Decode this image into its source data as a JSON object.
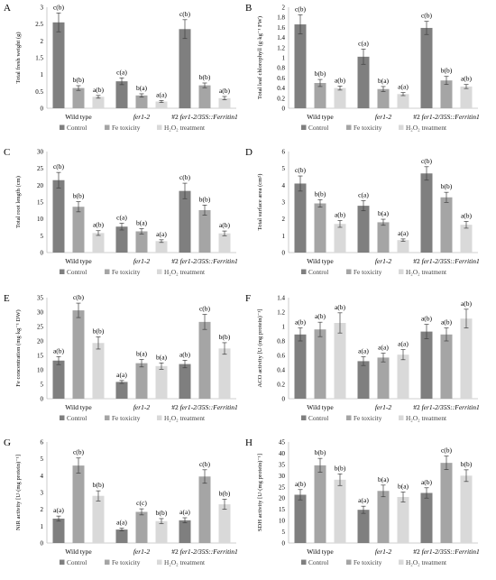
{
  "colors": {
    "control": "#7f7f7f",
    "fe": "#a5a5a5",
    "h2o2": "#d9d9d9",
    "axis": "#bfbfbf",
    "error": "#404040"
  },
  "legend_labels": [
    "Control",
    "Fe toxicity",
    "H₂O₂ treatment"
  ],
  "chart_data": [
    {
      "panel": "A",
      "type": "bar",
      "ylabel": "Total fresh weight (g)",
      "ylim": [
        0,
        3
      ],
      "yticks": [
        "0",
        "0.5",
        "1",
        "1.5",
        "2",
        "2.5",
        "3"
      ],
      "categories": [
        "Wild type",
        "fer1-2",
        "#2 fer1-2/35S::Ferritin1"
      ],
      "series": [
        {
          "name": "Control",
          "values": [
            2.55,
            0.8,
            2.35
          ],
          "errors": [
            0.28,
            0.1,
            0.28
          ],
          "labels": [
            "c(b)",
            "c(a)",
            "c(b)"
          ]
        },
        {
          "name": "Fe toxicity",
          "values": [
            0.6,
            0.38,
            0.68
          ],
          "errors": [
            0.07,
            0.05,
            0.07
          ],
          "labels": [
            "b(b)",
            "b(a)",
            "b(b)"
          ]
        },
        {
          "name": "H₂O₂ treatment",
          "values": [
            0.34,
            0.2,
            0.3
          ],
          "errors": [
            0.04,
            0.03,
            0.05
          ],
          "labels": [
            "a(b)",
            "a(a)",
            "a(b)"
          ]
        }
      ]
    },
    {
      "panel": "B",
      "type": "bar",
      "ylabel": "Total leaf chlorophyll (g·kg⁻¹ FW)",
      "ylim": [
        0,
        2
      ],
      "yticks": [
        "0",
        "0.2",
        "0.4",
        "0.6",
        "0.8",
        "1",
        "1.2",
        "1.4",
        "1.6",
        "1.8",
        "2"
      ],
      "categories": [
        "Wild type",
        "fer1-2",
        "#2 fer1-2/35S::Ferritin1"
      ],
      "series": [
        {
          "name": "Control",
          "values": [
            1.66,
            1.02,
            1.59
          ],
          "errors": [
            0.19,
            0.15,
            0.13
          ],
          "labels": [
            "c(b)",
            "c(a)",
            "c(b)"
          ]
        },
        {
          "name": "Fe toxicity",
          "values": [
            0.5,
            0.38,
            0.55
          ],
          "errors": [
            0.07,
            0.05,
            0.08
          ],
          "labels": [
            "b(b)",
            "b(a)",
            "b(b)"
          ]
        },
        {
          "name": "H₂O₂ treatment",
          "values": [
            0.4,
            0.28,
            0.43
          ],
          "errors": [
            0.04,
            0.03,
            0.04
          ],
          "labels": [
            "a(b)",
            "a(a)",
            "a(b)"
          ]
        }
      ]
    },
    {
      "panel": "C",
      "type": "bar",
      "ylabel": "Total root length (cm)",
      "ylim": [
        0,
        30
      ],
      "yticks": [
        "0",
        "5",
        "10",
        "15",
        "20",
        "25",
        "30"
      ],
      "categories": [
        "Wild type",
        "fer1-2",
        "#2 fer1-2/35S::Ferritin1"
      ],
      "series": [
        {
          "name": "Control",
          "values": [
            21.5,
            7.7,
            18.3
          ],
          "errors": [
            2.3,
            1.0,
            2.3
          ],
          "labels": [
            "c(b)",
            "c(a)",
            "c(b)"
          ]
        },
        {
          "name": "Fe toxicity",
          "values": [
            13.6,
            6.3,
            12.6
          ],
          "errors": [
            1.5,
            0.8,
            1.5
          ],
          "labels": [
            "b(b)",
            "b(a)",
            "b(b)"
          ]
        },
        {
          "name": "H₂O₂ treatment",
          "values": [
            5.8,
            3.4,
            5.7
          ],
          "errors": [
            0.7,
            0.4,
            0.7
          ],
          "labels": [
            "a(b)",
            "a(a)",
            "a(b)"
          ]
        }
      ]
    },
    {
      "panel": "D",
      "type": "bar",
      "ylabel": "Total surface area (cm²)",
      "ylim": [
        0,
        6
      ],
      "yticks": [
        "0",
        "1",
        "2",
        "3",
        "4",
        "5",
        "6"
      ],
      "categories": [
        "Wild type",
        "fer1-2",
        "#2 fer1-2/35S::Ferritin1"
      ],
      "series": [
        {
          "name": "Control",
          "values": [
            4.1,
            2.78,
            4.7
          ],
          "errors": [
            0.45,
            0.3,
            0.4
          ],
          "labels": [
            "c(b)",
            "c(a)",
            "c(b)"
          ]
        },
        {
          "name": "Fe toxicity",
          "values": [
            2.92,
            1.8,
            3.28
          ],
          "errors": [
            0.22,
            0.18,
            0.3
          ],
          "labels": [
            "b(b)",
            "b(a)",
            "b(b)"
          ]
        },
        {
          "name": "H₂O₂ treatment",
          "values": [
            1.7,
            0.74,
            1.65
          ],
          "errors": [
            0.2,
            0.07,
            0.2
          ],
          "labels": [
            "a(b)",
            "a(a)",
            "a(b)"
          ]
        }
      ]
    },
    {
      "panel": "E",
      "type": "bar",
      "ylabel": "Fe concentration (mg·kg⁻¹ DW)",
      "ylim": [
        0,
        35
      ],
      "yticks": [
        "0",
        "5",
        "10",
        "15",
        "20",
        "25",
        "30",
        "35"
      ],
      "categories": [
        "Wild type",
        "fer1-2",
        "#2 fer1-2/35S::Ferritin1"
      ],
      "series": [
        {
          "name": "Control",
          "values": [
            13.2,
            5.8,
            12.0
          ],
          "errors": [
            1.4,
            0.5,
            1.3
          ],
          "labels": [
            "a(b)",
            "a(a)",
            "a(b)"
          ]
        },
        {
          "name": "Fe toxicity",
          "values": [
            30.6,
            12.3,
            26.6
          ],
          "errors": [
            2.5,
            1.3,
            2.6
          ],
          "labels": [
            "c(b)",
            "b(a)",
            "c(b)"
          ]
        },
        {
          "name": "H₂O₂ treatment",
          "values": [
            19.3,
            11.3,
            17.4
          ],
          "errors": [
            2.1,
            1.1,
            2.0
          ],
          "labels": [
            "b(b)",
            "b(a)",
            "b(b)"
          ]
        }
      ]
    },
    {
      "panel": "F",
      "type": "bar",
      "ylabel": "ACO activity [U·(mg protein)⁻¹]",
      "ylim": [
        0,
        1.4
      ],
      "yticks": [
        "0",
        "0.2",
        "0.4",
        "0.6",
        "0.8",
        "1",
        "1.2",
        "1.4"
      ],
      "categories": [
        "Wild type",
        "fer1-2",
        "#2 fer1-2/35S::Ferritin1"
      ],
      "series": [
        {
          "name": "Control",
          "values": [
            0.89,
            0.52,
            0.93
          ],
          "errors": [
            0.09,
            0.06,
            0.1
          ],
          "labels": [
            "a(b)",
            "a(a)",
            "a(b)"
          ]
        },
        {
          "name": "Fe toxicity",
          "values": [
            0.96,
            0.57,
            0.89
          ],
          "errors": [
            0.1,
            0.06,
            0.09
          ],
          "labels": [
            "a(b)",
            "a(a)",
            "a(b)"
          ]
        },
        {
          "name": "H₂O₂ treatment",
          "values": [
            1.05,
            0.61,
            1.11
          ],
          "errors": [
            0.14,
            0.07,
            0.13
          ],
          "labels": [
            "a(b)",
            "a(a)",
            "a(b)"
          ]
        }
      ]
    },
    {
      "panel": "G",
      "type": "bar",
      "ylabel": "NiR activity [U·(mg protein)⁻¹]",
      "ylim": [
        0,
        6
      ],
      "yticks": [
        "0",
        "1",
        "2",
        "3",
        "4",
        "5",
        "6"
      ],
      "categories": [
        "Wild type",
        "fer1-2",
        "#2 fer1-2/35S::Ferritin1"
      ],
      "series": [
        {
          "name": "Control",
          "values": [
            1.45,
            0.8,
            1.35
          ],
          "errors": [
            0.15,
            0.08,
            0.15
          ],
          "labels": [
            "a(a)",
            "a(a)",
            "a(a)"
          ]
        },
        {
          "name": "Fe toxicity",
          "values": [
            4.6,
            1.85,
            3.95
          ],
          "errors": [
            0.45,
            0.18,
            0.4
          ],
          "labels": [
            "c(b)",
            "c(c)",
            "c(b)"
          ]
        },
        {
          "name": "H₂O₂ treatment",
          "values": [
            2.8,
            1.3,
            2.3
          ],
          "errors": [
            0.3,
            0.15,
            0.3
          ],
          "labels": [
            "b(b)",
            "b(b)",
            "b(b)"
          ]
        }
      ]
    },
    {
      "panel": "H",
      "type": "bar",
      "ylabel": "SDH activity [U·(mg protein)⁻¹]",
      "ylim": [
        0,
        45
      ],
      "yticks": [
        "0",
        "5",
        "10",
        "15",
        "20",
        "25",
        "30",
        "35",
        "40",
        "45"
      ],
      "categories": [
        "Wild type",
        "fer1-2",
        "#2 fer1-2/35S::Ferritin1"
      ],
      "series": [
        {
          "name": "Control",
          "values": [
            21.5,
            14.8,
            22.3
          ],
          "errors": [
            2.3,
            1.6,
            2.3
          ],
          "labels": [
            "a(b)",
            "a(a)",
            "a(b)"
          ]
        },
        {
          "name": "Fe toxicity",
          "values": [
            34.6,
            23.2,
            35.7
          ],
          "errors": [
            3.1,
            2.6,
            3.0
          ],
          "labels": [
            "b(b)",
            "b(a)",
            "c(b)"
          ]
        },
        {
          "name": "H₂O₂ treatment",
          "values": [
            28.2,
            20.5,
            30.0
          ],
          "errors": [
            2.6,
            2.2,
            2.6
          ],
          "labels": [
            "b(b)",
            "b(a)",
            "b(b)"
          ]
        }
      ]
    }
  ]
}
